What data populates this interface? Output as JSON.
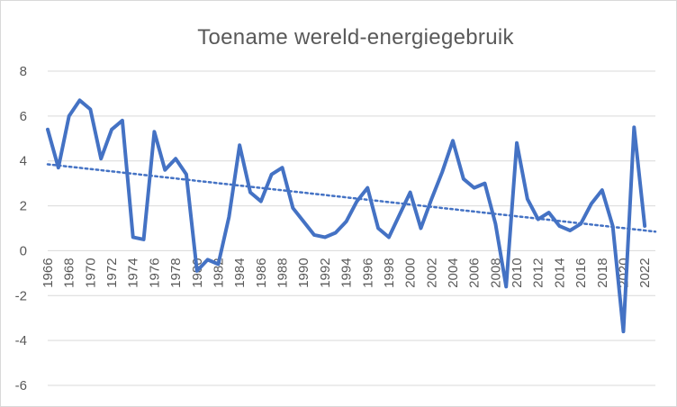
{
  "chart_data": {
    "type": "line",
    "title": "Toename wereld-energiegebruik",
    "xlabel": "",
    "ylabel": "",
    "ylim": [
      -6,
      8
    ],
    "yticks": [
      -6,
      -4,
      -2,
      0,
      2,
      4,
      6,
      8
    ],
    "xlim": [
      1966,
      2023
    ],
    "xticks": [
      1966,
      1968,
      1970,
      1972,
      1974,
      1976,
      1978,
      1980,
      1982,
      1984,
      1986,
      1988,
      1990,
      1992,
      1994,
      1996,
      1998,
      2000,
      2002,
      2004,
      2006,
      2008,
      2010,
      2012,
      2014,
      2016,
      2018,
      2020,
      2022
    ],
    "grid": "horizontal",
    "legend": "none",
    "series": [
      {
        "color": "#4472c4",
        "x": [
          1966,
          1967,
          1968,
          1969,
          1970,
          1971,
          1972,
          1973,
          1974,
          1975,
          1976,
          1977,
          1978,
          1979,
          1980,
          1981,
          1982,
          1983,
          1984,
          1985,
          1986,
          1987,
          1988,
          1989,
          1990,
          1991,
          1992,
          1993,
          1994,
          1995,
          1996,
          1997,
          1998,
          1999,
          2000,
          2001,
          2002,
          2003,
          2004,
          2005,
          2006,
          2007,
          2008,
          2009,
          2010,
          2011,
          2012,
          2013,
          2014,
          2015,
          2016,
          2017,
          2018,
          2019,
          2020,
          2021,
          2022
        ],
        "values": [
          5.4,
          3.7,
          6.0,
          6.7,
          6.3,
          4.1,
          5.4,
          5.8,
          0.6,
          0.5,
          5.3,
          3.6,
          4.1,
          3.4,
          -0.9,
          -0.4,
          -0.6,
          1.5,
          4.7,
          2.6,
          2.2,
          3.4,
          3.7,
          1.9,
          1.3,
          0.7,
          0.6,
          0.8,
          1.3,
          2.2,
          2.8,
          1.0,
          0.6,
          1.6,
          2.6,
          1.0,
          2.3,
          3.5,
          4.9,
          3.2,
          2.8,
          3.0,
          1.2,
          -1.6,
          4.8,
          2.3,
          1.4,
          1.7,
          1.1,
          0.9,
          1.2,
          2.1,
          2.7,
          1.1,
          -3.6,
          5.5,
          1.1
        ]
      },
      {
        "type": "trendline",
        "style": "dotted",
        "color": "#4472c4",
        "x": [
          1966,
          2023
        ],
        "values": [
          3.85,
          0.85
        ]
      }
    ]
  }
}
